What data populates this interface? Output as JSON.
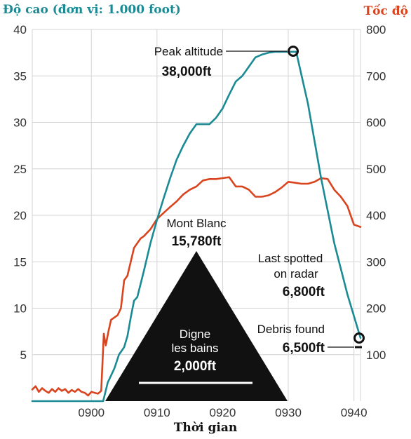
{
  "chart_data": {
    "type": "line",
    "title": "",
    "y_left_label": "Độ cao (đơn vị: 1.000 foot)",
    "y_right_label": "Tốc độ",
    "xlabel": "Thời gian",
    "x_ticks": [
      "0900",
      "0910",
      "0920",
      "0930",
      "0940"
    ],
    "y_left_ticks": [
      5,
      10,
      15,
      20,
      25,
      30,
      35,
      40
    ],
    "y_right_ticks": [
      100,
      200,
      300,
      400,
      500,
      600,
      700,
      800
    ],
    "ylim_left": [
      0,
      40
    ],
    "ylim_right": [
      0,
      800
    ],
    "grid": true,
    "series": [
      {
        "axis": "left",
        "color": "#1a8a94",
        "points": [
          [
            -9,
            0
          ],
          [
            -4,
            0
          ],
          [
            0,
            0
          ],
          [
            1.8,
            0
          ],
          [
            2.5,
            2
          ],
          [
            3.5,
            3.5
          ],
          [
            4.2,
            5
          ],
          [
            5,
            5.8
          ],
          [
            5.5,
            7
          ],
          [
            6,
            9
          ],
          [
            6.5,
            10.8
          ],
          [
            7,
            11.2
          ],
          [
            8,
            14
          ],
          [
            9,
            17
          ],
          [
            10,
            19.5
          ],
          [
            11,
            21.8
          ],
          [
            12,
            24
          ],
          [
            13,
            26
          ],
          [
            14,
            27.5
          ],
          [
            15,
            28.8
          ],
          [
            16,
            29.8
          ],
          [
            17,
            29.8
          ],
          [
            18,
            29.8
          ],
          [
            19,
            30.5
          ],
          [
            20,
            31.5
          ],
          [
            21,
            33
          ],
          [
            22,
            34.4
          ],
          [
            23,
            35
          ],
          [
            24,
            36
          ],
          [
            25,
            37
          ],
          [
            26,
            37.3
          ],
          [
            27,
            37.5
          ],
          [
            28,
            37.6
          ],
          [
            29,
            37.6
          ],
          [
            30,
            37.6
          ],
          [
            31.2,
            37.6
          ],
          [
            33,
            32
          ],
          [
            35,
            24
          ],
          [
            37,
            17
          ],
          [
            39,
            11.5
          ],
          [
            41,
            6.8
          ]
        ]
      },
      {
        "axis": "right",
        "color": "#d9441e",
        "points": [
          [
            -9,
            25
          ],
          [
            -8.5,
            32
          ],
          [
            -8,
            20
          ],
          [
            -7.5,
            28
          ],
          [
            -7,
            22
          ],
          [
            -6.5,
            18
          ],
          [
            -6,
            26
          ],
          [
            -5.5,
            20
          ],
          [
            -5,
            28
          ],
          [
            -4.5,
            22
          ],
          [
            -4,
            26
          ],
          [
            -3.5,
            18
          ],
          [
            -3,
            24
          ],
          [
            -2.5,
            20
          ],
          [
            -2,
            26
          ],
          [
            -1.5,
            20
          ],
          [
            -1,
            18
          ],
          [
            -0.5,
            12
          ],
          [
            0,
            20
          ],
          [
            0.5,
            18
          ],
          [
            1,
            16
          ],
          [
            1.5,
            22
          ],
          [
            1.9,
            145
          ],
          [
            2.2,
            120
          ],
          [
            2.6,
            150
          ],
          [
            3,
            175
          ],
          [
            3.5,
            180
          ],
          [
            4,
            185
          ],
          [
            4.5,
            200
          ],
          [
            5,
            260
          ],
          [
            5.5,
            270
          ],
          [
            6,
            300
          ],
          [
            6.5,
            330
          ],
          [
            7,
            340
          ],
          [
            7.5,
            350
          ],
          [
            8,
            355
          ],
          [
            9,
            370
          ],
          [
            10,
            392
          ],
          [
            11,
            405
          ],
          [
            12,
            418
          ],
          [
            13,
            430
          ],
          [
            14,
            445
          ],
          [
            15,
            455
          ],
          [
            16,
            462
          ],
          [
            17,
            475
          ],
          [
            18,
            478
          ],
          [
            19,
            478
          ],
          [
            20,
            480
          ],
          [
            21,
            482
          ],
          [
            22,
            462
          ],
          [
            23,
            462
          ],
          [
            24,
            455
          ],
          [
            25,
            440
          ],
          [
            26,
            440
          ],
          [
            27,
            443
          ],
          [
            28,
            450
          ],
          [
            29,
            460
          ],
          [
            30,
            472
          ],
          [
            31,
            470
          ],
          [
            32,
            468
          ],
          [
            33,
            468
          ],
          [
            34,
            472
          ],
          [
            35,
            480
          ],
          [
            36,
            478
          ],
          [
            37,
            455
          ],
          [
            38,
            440
          ],
          [
            39,
            420
          ],
          [
            40,
            380
          ],
          [
            41,
            375
          ]
        ]
      }
    ],
    "annotations": {
      "peak_line1": "Peak altitude",
      "peak_line2": "38,000ft",
      "mont_blanc_line1": "Mont Blanc",
      "mont_blanc_line2": "15,780ft",
      "digne_line1": "Digne",
      "digne_line2": "les bains",
      "digne_line3": "2,000ft",
      "radar_line1": "Last spotted",
      "radar_line2": "on radar",
      "radar_line3": "6,800ft",
      "debris_line1": "Debris found",
      "debris_line2": "6,500ft"
    }
  }
}
